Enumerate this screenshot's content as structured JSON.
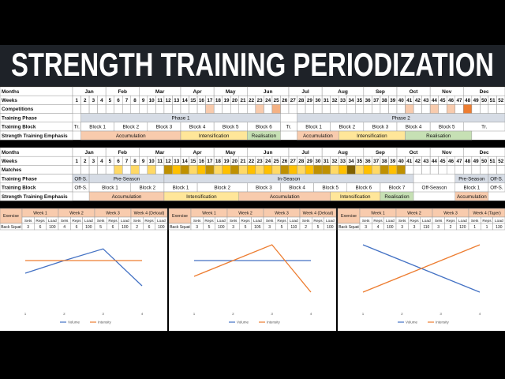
{
  "header": {
    "title": "STRENGTH TRAINING PERIODIZATION"
  },
  "calendar": {
    "months": [
      {
        "label": "Jan",
        "start": 1,
        "end": 4
      },
      {
        "label": "Feb",
        "start": 5,
        "end": 8
      },
      {
        "label": "Mar",
        "start": 9,
        "end": 13
      },
      {
        "label": "Apr",
        "start": 14,
        "end": 17
      },
      {
        "label": "May",
        "start": 18,
        "end": 21
      },
      {
        "label": "Jun",
        "start": 22,
        "end": 26
      },
      {
        "label": "Jul",
        "start": 27,
        "end": 30
      },
      {
        "label": "Aug",
        "start": 31,
        "end": 35
      },
      {
        "label": "Sep",
        "start": 36,
        "end": 39
      },
      {
        "label": "Oct",
        "start": 40,
        "end": 43
      },
      {
        "label": "Nov",
        "start": 44,
        "end": 47
      },
      {
        "label": "Dec",
        "start": 48,
        "end": 52
      }
    ],
    "weeks": [
      1,
      2,
      3,
      4,
      5,
      6,
      7,
      8,
      9,
      10,
      11,
      12,
      13,
      14,
      15,
      16,
      17,
      18,
      19,
      20,
      21,
      22,
      23,
      24,
      25,
      26,
      27,
      28,
      29,
      30,
      31,
      32,
      33,
      34,
      35,
      36,
      37,
      38,
      39,
      40,
      41,
      42,
      43,
      44,
      45,
      46,
      47,
      48,
      49,
      50,
      51,
      52
    ]
  },
  "plans": [
    {
      "row_labels": [
        "Months",
        "Weeks",
        "Competitions",
        "Training Phase",
        "Training Block",
        "Strength Training Emphasis"
      ],
      "events": [
        {
          "week": 17,
          "color": "#f8cbad"
        },
        {
          "week": 23,
          "color": "#f8cbad"
        },
        {
          "week": 25,
          "color": "#f4b183"
        },
        {
          "week": 41,
          "color": "#f8cbad"
        },
        {
          "week": 44,
          "color": "#f8cbad"
        },
        {
          "week": 46,
          "color": "#f8cbad"
        },
        {
          "week": 48,
          "color": "#ed7d31"
        }
      ],
      "phases": [
        {
          "label": "Phase 1",
          "start": 2,
          "end": 25
        },
        {
          "label": "Phase 2",
          "start": 28,
          "end": 52
        }
      ],
      "blocks": [
        {
          "label": "Tr.",
          "start": 1,
          "end": 1
        },
        {
          "label": "Block 1",
          "start": 2,
          "end": 5
        },
        {
          "label": "Block 2",
          "start": 6,
          "end": 9
        },
        {
          "label": "Block 3",
          "start": 10,
          "end": 13
        },
        {
          "label": "Block 4",
          "start": 14,
          "end": 17
        },
        {
          "label": "Block 5",
          "start": 18,
          "end": 21
        },
        {
          "label": "Block 6",
          "start": 22,
          "end": 25
        },
        {
          "label": "Tr.",
          "start": 26,
          "end": 27
        },
        {
          "label": "Block 1",
          "start": 28,
          "end": 31
        },
        {
          "label": "Block 2",
          "start": 32,
          "end": 35
        },
        {
          "label": "Block 3",
          "start": 36,
          "end": 39
        },
        {
          "label": "Block 4",
          "start": 40,
          "end": 43
        },
        {
          "label": "Block 5",
          "start": 44,
          "end": 47
        },
        {
          "label": "Tr.",
          "start": 48,
          "end": 52
        }
      ],
      "emphasis": [
        {
          "label": "Accumulation",
          "start": 2,
          "end": 13,
          "color": "#f8cbad"
        },
        {
          "label": "Intensification",
          "start": 14,
          "end": 21,
          "color": "#ffe699"
        },
        {
          "label": "Realisation",
          "start": 22,
          "end": 25,
          "color": "#c6e0b4"
        },
        {
          "label": "Accumulation",
          "start": 28,
          "end": 32,
          "color": "#f8cbad"
        },
        {
          "label": "Intensification",
          "start": 33,
          "end": 40,
          "color": "#ffe699"
        },
        {
          "label": "Realisation",
          "start": 41,
          "end": 48,
          "color": "#c6e0b4"
        }
      ]
    },
    {
      "row_labels": [
        "Months",
        "Weeks",
        "Matches",
        "Training Phase",
        "Training Block",
        "Strength Training Emphasis"
      ],
      "events": [
        {
          "week": 6,
          "color": "#ffd966"
        },
        {
          "week": 8,
          "color": "#ffd966"
        },
        {
          "week": 10,
          "color": "#ffd966"
        },
        {
          "week": 12,
          "color": "#bf9000"
        },
        {
          "week": 13,
          "color": "#ffc000"
        },
        {
          "week": 14,
          "color": "#bf9000"
        },
        {
          "week": 15,
          "color": "#ffd966"
        },
        {
          "week": 16,
          "color": "#ffc000"
        },
        {
          "week": 17,
          "color": "#bf9000"
        },
        {
          "week": 18,
          "color": "#ffd966"
        },
        {
          "week": 19,
          "color": "#ffc000"
        },
        {
          "week": 20,
          "color": "#bf9000"
        },
        {
          "week": 21,
          "color": "#ffd966"
        },
        {
          "week": 22,
          "color": "#ffc000"
        },
        {
          "week": 23,
          "color": "#ffd966"
        },
        {
          "week": 24,
          "color": "#ffc000"
        },
        {
          "week": 25,
          "color": "#ffd966"
        },
        {
          "week": 26,
          "color": "#bf9000"
        },
        {
          "week": 27,
          "color": "#ffc000"
        },
        {
          "week": 28,
          "color": "#ffd966"
        },
        {
          "week": 29,
          "color": "#ffc000"
        },
        {
          "week": 30,
          "color": "#bf9000"
        },
        {
          "week": 31,
          "color": "#bf9000"
        },
        {
          "week": 32,
          "color": "#ffd966"
        },
        {
          "week": 33,
          "color": "#ffc000"
        },
        {
          "week": 34,
          "color": "#7f6000"
        },
        {
          "week": 35,
          "color": "#ffd966"
        },
        {
          "week": 36,
          "color": "#ffc000"
        },
        {
          "week": 37,
          "color": "#ffd966"
        },
        {
          "week": 38,
          "color": "#bf9000"
        },
        {
          "week": 39,
          "color": "#ffc000"
        },
        {
          "week": 40,
          "color": "#bf9000"
        }
      ],
      "phases": [
        {
          "label": "Off-S.",
          "start": 1,
          "end": 2
        },
        {
          "label": "Pre-Season",
          "start": 3,
          "end": 11
        },
        {
          "label": "In-Season",
          "start": 12,
          "end": 41
        },
        {
          "label": "Pre-Season",
          "start": 47,
          "end": 50
        },
        {
          "label": "Off-S.",
          "start": 51,
          "end": 52
        }
      ],
      "blocks": [
        {
          "label": "Off-S.",
          "start": 1,
          "end": 2
        },
        {
          "label": "Block 1",
          "start": 3,
          "end": 7
        },
        {
          "label": "Block 2",
          "start": 8,
          "end": 11
        },
        {
          "label": "Block 1",
          "start": 12,
          "end": 15
        },
        {
          "label": "Block 2",
          "start": 16,
          "end": 21
        },
        {
          "label": "Block 3",
          "start": 22,
          "end": 25
        },
        {
          "label": "Block 4",
          "start": 26,
          "end": 29
        },
        {
          "label": "Block 5",
          "start": 30,
          "end": 33
        },
        {
          "label": "Block 6",
          "start": 34,
          "end": 37
        },
        {
          "label": "Block 7",
          "start": 38,
          "end": 41
        },
        {
          "label": "Off-Season",
          "start": 42,
          "end": 46
        },
        {
          "label": "Block 1",
          "start": 47,
          "end": 50
        },
        {
          "label": "Off-S.",
          "start": 51,
          "end": 52
        }
      ],
      "emphasis": [
        {
          "label": "Accumulation",
          "start": 3,
          "end": 11,
          "color": "#f8cbad"
        },
        {
          "label": "Intensification",
          "start": 12,
          "end": 20,
          "color": "#ffe699"
        },
        {
          "label": "Accumulation",
          "start": 21,
          "end": 31,
          "color": "#f8cbad"
        },
        {
          "label": "Intensification",
          "start": 32,
          "end": 37,
          "color": "#ffe699"
        },
        {
          "label": "Realisation",
          "start": 38,
          "end": 41,
          "color": "#c6e0b4"
        },
        {
          "label": "Accumulation",
          "start": 47,
          "end": 50,
          "color": "#f8cbad"
        }
      ]
    }
  ],
  "panels": [
    {
      "table": {
        "header": [
          "Exercise",
          "Week 1",
          "Week 2",
          "Week 3",
          "Week 4 (Deload)"
        ],
        "subheader": [
          "Sets",
          "Reps",
          "Load"
        ],
        "rows": [
          [
            "Back Squat",
            3,
            6,
            100,
            4,
            6,
            100,
            5,
            6,
            100,
            2,
            6,
            100
          ]
        ]
      },
      "chart": {
        "type": "line",
        "x": [
          1,
          2,
          3,
          4
        ],
        "ylim": [
          0,
          100
        ],
        "series": [
          {
            "name": "Volume",
            "color": "#4472c4",
            "values": [
              42.5,
              62.5,
              81,
              22.5
            ]
          },
          {
            "name": "Intensity",
            "color": "#ed7d31",
            "values": [
              62.5,
              62.5,
              62.5,
              62.5
            ]
          }
        ]
      }
    },
    {
      "table": {
        "header": [
          "Exercise",
          "Week 1",
          "Week 2",
          "Week 3",
          "Week 4 (Deload)"
        ],
        "subheader": [
          "Sets",
          "Reps",
          "Load"
        ],
        "rows": [
          [
            "Back Squat",
            3,
            5,
            100,
            3,
            5,
            105,
            3,
            5,
            110,
            2,
            5,
            100
          ]
        ]
      },
      "chart": {
        "type": "line",
        "x": [
          1,
          2,
          3,
          4
        ],
        "ylim": [
          0,
          100
        ],
        "series": [
          {
            "name": "Volume",
            "color": "#4472c4",
            "values": [
              62.5,
              62.5,
              62.5,
              62.5
            ]
          },
          {
            "name": "Intensity",
            "color": "#ed7d31",
            "values": [
              37.5,
              62.5,
              87.5,
              12.5
            ]
          }
        ]
      }
    },
    {
      "table": {
        "header": [
          "Exercise",
          "Week 1",
          "Week 2",
          "Week 3",
          "Week 4 (Taper)"
        ],
        "subheader": [
          "Sets",
          "Reps",
          "Load"
        ],
        "rows": [
          [
            "Back Squat",
            3,
            4,
            100,
            3,
            3,
            110,
            3,
            2,
            120,
            1,
            1,
            130
          ]
        ]
      },
      "chart": {
        "type": "line",
        "x": [
          1,
          2,
          3,
          4
        ],
        "ylim": [
          0,
          100
        ],
        "series": [
          {
            "name": "Volume",
            "color": "#4472c4",
            "values": [
              87.5,
              62.5,
              37.5,
              12.5
            ]
          },
          {
            "name": "Intensity",
            "color": "#ed7d31",
            "values": [
              12.5,
              37.5,
              62.5,
              87.5
            ]
          }
        ]
      }
    }
  ]
}
